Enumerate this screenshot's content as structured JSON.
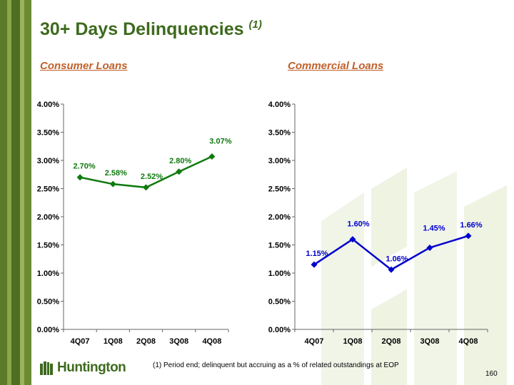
{
  "title": "30+ Days Delinquencies",
  "title_note": "(1)",
  "colors": {
    "title": "#3e6a1e",
    "subhead": "#c0602a",
    "consumer_series": "#0f7a0f",
    "commercial_series": "#0000cc"
  },
  "chart_data": [
    {
      "type": "line",
      "title": "Consumer Loans",
      "xlabel": "",
      "ylabel": "",
      "categories": [
        "4Q07",
        "1Q08",
        "2Q08",
        "3Q08",
        "4Q08"
      ],
      "series": [
        {
          "values": [
            2.7,
            2.58,
            2.52,
            2.8,
            3.07
          ],
          "labels": [
            "2.70%",
            "2.58%",
            "2.52%",
            "2.80%",
            "3.07%"
          ]
        }
      ],
      "ylim": [
        0,
        4
      ],
      "yticks": [
        "0.00%",
        "0.50%",
        "1.00%",
        "1.50%",
        "2.00%",
        "2.50%",
        "3.00%",
        "3.50%",
        "4.00%"
      ],
      "grid": false,
      "marker": "diamond"
    },
    {
      "type": "line",
      "title": "Commercial Loans",
      "xlabel": "",
      "ylabel": "",
      "categories": [
        "4Q07",
        "1Q08",
        "2Q08",
        "3Q08",
        "4Q08"
      ],
      "series": [
        {
          "values": [
            1.15,
            1.6,
            1.06,
            1.45,
            1.66
          ],
          "labels": [
            "1.15%",
            "1.60%",
            "1.06%",
            "1.45%",
            "1.66%"
          ]
        }
      ],
      "ylim": [
        0,
        4
      ],
      "yticks": [
        "0.00%",
        "0.50%",
        "1.00%",
        "1.50%",
        "2.00%",
        "2.50%",
        "3.00%",
        "3.50%",
        "4.00%"
      ],
      "grid": false,
      "marker": "diamond"
    }
  ],
  "logo_text": "Huntington",
  "footnote": "(1) Period end; delinquent but accruing as a % of related outstandings at EOP",
  "page_number": "160"
}
